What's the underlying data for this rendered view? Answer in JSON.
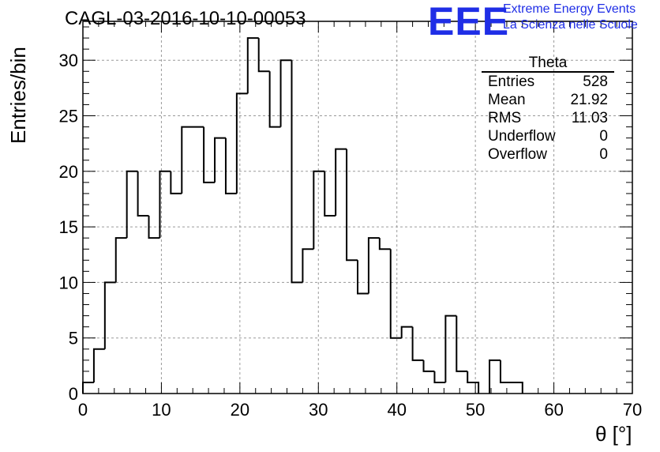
{
  "title": "CAGL-03-2016-10-10-00053",
  "logo": {
    "mark": "EEE",
    "line1": "Extreme Energy Events",
    "line2": "La Scienza nelle Scuole",
    "color": "#1f2ee6"
  },
  "stats": {
    "name": "Theta",
    "rows": [
      {
        "label": "Entries",
        "value": "528"
      },
      {
        "label": "Mean",
        "value": "21.92"
      },
      {
        "label": "RMS",
        "value": "11.03"
      },
      {
        "label": "Underflow",
        "value": "0"
      },
      {
        "label": "Overflow",
        "value": "0"
      }
    ]
  },
  "chart_data": {
    "type": "bar",
    "title": "CAGL-03-2016-10-10-00053",
    "xlabel": "θ [°]",
    "ylabel": "Entries/bin",
    "xlim": [
      0,
      70
    ],
    "ylim": [
      0,
      33.5
    ],
    "grid": true,
    "bin_width": 1.4,
    "bin_edges_start": 0,
    "values": [
      1,
      4,
      10,
      14,
      20,
      16,
      14,
      20,
      18,
      24,
      24,
      19,
      23,
      18,
      27,
      32,
      29,
      24,
      30,
      10,
      13,
      20,
      16,
      22,
      12,
      9,
      14,
      13,
      5,
      6,
      3,
      2,
      1,
      7,
      2,
      1,
      0,
      3,
      1,
      1,
      0,
      0,
      0,
      0,
      0,
      0,
      0,
      0,
      0,
      0
    ],
    "xticks": [
      0,
      10,
      20,
      30,
      40,
      50,
      60,
      70
    ],
    "yticks": [
      0,
      5,
      10,
      15,
      20,
      25,
      30
    ],
    "line_color": "#000000",
    "grid_color": "#9a9a9a"
  }
}
